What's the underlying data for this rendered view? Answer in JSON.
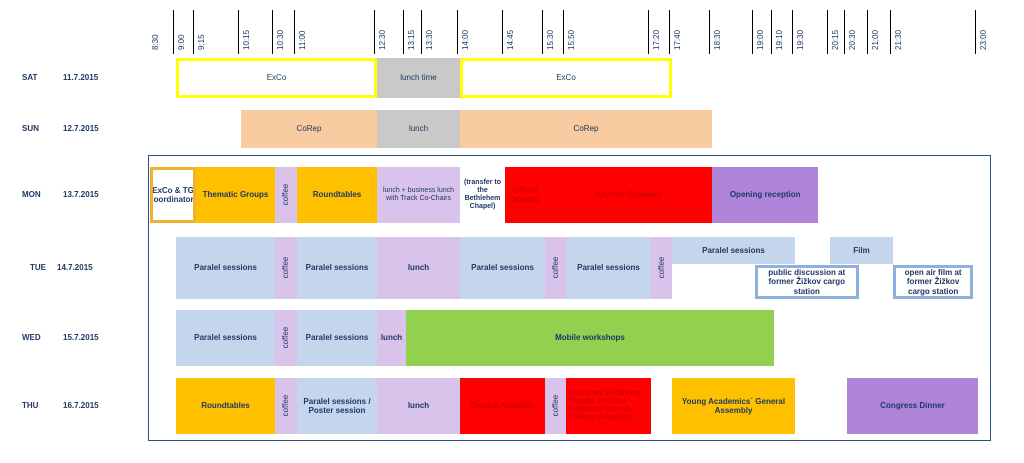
{
  "colors": {
    "white": "#ffffff",
    "grey": "#c9c9c9",
    "peach": "#f8cba0",
    "orange": "#ffc000",
    "lavender": "#d9c3ea",
    "red": "#ff0000",
    "purple": "#b084d9",
    "blue": "#c5d5ec",
    "green": "#92d050",
    "yellow_border": "#ffff00",
    "gold_border": "#f2b030",
    "blue_border": "#8fb0dc",
    "text": "#1f3864",
    "red_text": "#c00000"
  },
  "times": [
    "8:30",
    "9:00",
    "9:15",
    "10:15",
    "10:30",
    "11:00",
    "12:30",
    "13:15",
    "13:30",
    "14:00",
    "14:45",
    "15:30",
    "15:50",
    "17:20",
    "17:40",
    "18:30",
    "19:00",
    "19:10",
    "19:30",
    "20:15",
    "20:30",
    "21:00",
    "21:30",
    "23:00"
  ],
  "days": [
    {
      "day": "SAT",
      "date": "11.7.2015"
    },
    {
      "day": "SUN",
      "date": "12.7.2015"
    },
    {
      "day": "MON",
      "date": "13.7.2015"
    },
    {
      "day": "TUE",
      "date": "14.7.2015"
    },
    {
      "day": "WED",
      "date": "15.7.2015"
    },
    {
      "day": "THU",
      "date": "16.7.2015"
    }
  ],
  "events": [
    {
      "day": 0,
      "start": "9:00",
      "end": "12:30",
      "label": "ExCo",
      "fill": "white",
      "border": "yellow_border"
    },
    {
      "day": 0,
      "start": "12:30",
      "end": "14:00",
      "label": "lunch time",
      "fill": "grey"
    },
    {
      "day": 0,
      "start": "14:00",
      "end": "17:40",
      "label": "ExCo",
      "fill": "white",
      "border": "yellow_border"
    },
    {
      "day": 1,
      "start": "10:15",
      "end": "12:30",
      "label": "CoRep",
      "fill": "peach"
    },
    {
      "day": 1,
      "start": "12:30",
      "end": "14:00",
      "label": "lunch",
      "fill": "grey"
    },
    {
      "day": 1,
      "start": "14:00",
      "end": "18:30",
      "label": "CoRep",
      "fill": "peach"
    },
    {
      "day": 2,
      "start": "8:30",
      "end": "9:15",
      "label": "ExCo & TG Coordinators",
      "fill": "white",
      "border": "gold_border",
      "bold": true
    },
    {
      "day": 2,
      "start": "9:15",
      "end": "10:30",
      "label": "Thematic Groups",
      "fill": "orange",
      "bold": true
    },
    {
      "day": 2,
      "start": "10:30",
      "end": "11:00",
      "label": "coffee",
      "fill": "lavender",
      "vertical": true
    },
    {
      "day": 2,
      "start": "11:00",
      "end": "12:30",
      "label": "Roundtables",
      "fill": "orange",
      "bold": true
    },
    {
      "day": 2,
      "start": "12:30",
      "end": "14:00",
      "label": "lunch + business lunch with Track Co-Chairs",
      "fill": "lavender",
      "small": true
    },
    {
      "day": 2,
      "start": "14:00",
      "end": "14:45",
      "label": "(transfer to the Bethlehem Chapel)",
      "fill": "white",
      "small": true,
      "bold": true
    },
    {
      "day": 2,
      "start": "14:45",
      "end": "15:30",
      "label": "Official opening",
      "fill": "red",
      "textcolor": "red_text"
    },
    {
      "day": 2,
      "start": "15:30",
      "end": "18:30",
      "label": "Keynote Speakers",
      "fill": "red",
      "textcolor": "red_text"
    },
    {
      "day": 2,
      "start": "18:30",
      "end": "20:00",
      "label": "Opening reception",
      "fill": "purple",
      "bold": true
    },
    {
      "day": 3,
      "start": "9:00",
      "end": "10:30",
      "label": "Paralel sessions",
      "fill": "blue",
      "bold": true
    },
    {
      "day": 3,
      "start": "10:30",
      "end": "11:00",
      "label": "coffee",
      "fill": "lavender",
      "vertical": true
    },
    {
      "day": 3,
      "start": "11:00",
      "end": "12:30",
      "label": "Paralel sessions",
      "fill": "blue",
      "bold": true
    },
    {
      "day": 3,
      "start": "12:30",
      "end": "14:00",
      "label": "lunch",
      "fill": "lavender",
      "bold": true
    },
    {
      "day": 3,
      "start": "14:00",
      "end": "15:30",
      "label": "Paralel sessions",
      "fill": "blue",
      "bold": true
    },
    {
      "day": 3,
      "start": "15:30",
      "end": "15:50",
      "label": "coffee",
      "fill": "lavender",
      "vertical": true
    },
    {
      "day": 3,
      "start": "15:50",
      "end": "17:20",
      "label": "Paralel sessions",
      "fill": "blue",
      "bold": true
    },
    {
      "day": 3,
      "start": "17:20",
      "end": "17:40",
      "label": "coffee",
      "fill": "lavender",
      "vertical": true
    },
    {
      "day": 3,
      "start": "17:40",
      "end": "19:30",
      "label": "Paralel sessions",
      "fill": "blue",
      "bold": true,
      "part": "top"
    },
    {
      "day": 3,
      "start": "20:15",
      "end": "21:30",
      "label": "Film",
      "fill": "blue",
      "bold": true,
      "part": "top"
    },
    {
      "day": 3,
      "start": "19:00",
      "end": "20:45",
      "label": "public discussion at former Žižkov cargo station",
      "fill": "white",
      "border": "blue_border",
      "bold": true,
      "part": "bottom"
    },
    {
      "day": 3,
      "start": "21:30",
      "end": "22:55",
      "label": "open air film at former Žižkov cargo station",
      "fill": "white",
      "border": "blue_border",
      "bold": true,
      "part": "bottom"
    },
    {
      "day": 4,
      "start": "9:00",
      "end": "10:30",
      "label": "Paralel sessions",
      "fill": "blue",
      "bold": true
    },
    {
      "day": 4,
      "start": "10:30",
      "end": "11:00",
      "label": "coffee",
      "fill": "lavender",
      "vertical": true
    },
    {
      "day": 4,
      "start": "11:00",
      "end": "12:30",
      "label": "Paralel sessions",
      "fill": "blue",
      "bold": true
    },
    {
      "day": 4,
      "start": "12:30",
      "end": "13:15",
      "label": "lunch",
      "fill": "lavender",
      "bold": true
    },
    {
      "day": 4,
      "start": "13:15",
      "end": "19:10",
      "label": "Mobile workshops",
      "fill": "green",
      "bold": true
    },
    {
      "day": 5,
      "start": "9:00",
      "end": "10:30",
      "label": "Roundtables",
      "fill": "orange",
      "bold": true
    },
    {
      "day": 5,
      "start": "10:30",
      "end": "11:00",
      "label": "coffee",
      "fill": "lavender",
      "vertical": true
    },
    {
      "day": 5,
      "start": "11:00",
      "end": "12:30",
      "label": "Paralel sessions / Poster session",
      "fill": "blue",
      "bold": true
    },
    {
      "day": 5,
      "start": "12:30",
      "end": "14:00",
      "label": "lunch",
      "fill": "lavender",
      "bold": true
    },
    {
      "day": 5,
      "start": "14:00",
      "end": "15:30",
      "label": "General Assembly",
      "fill": "red",
      "textcolor": "red_text"
    },
    {
      "day": 5,
      "start": "15:30",
      "end": "15:50",
      "label": "coffee",
      "fill": "lavender",
      "vertical": true
    },
    {
      "day": 5,
      "start": "15:50",
      "end": "17:20",
      "label": "Encounters in Planning Thought: Personal Reflections from Key Thinkers in Planning",
      "fill": "red",
      "textcolor": "red_text",
      "small": true,
      "align": "left"
    },
    {
      "day": 5,
      "start": "17:40",
      "end": "19:30",
      "label": "Young Academics´ General Assembly",
      "fill": "orange",
      "bold": true
    },
    {
      "day": 5,
      "start": "20:30",
      "end": "23:00",
      "label": "Congress Dinner",
      "fill": "purple",
      "bold": true
    }
  ]
}
